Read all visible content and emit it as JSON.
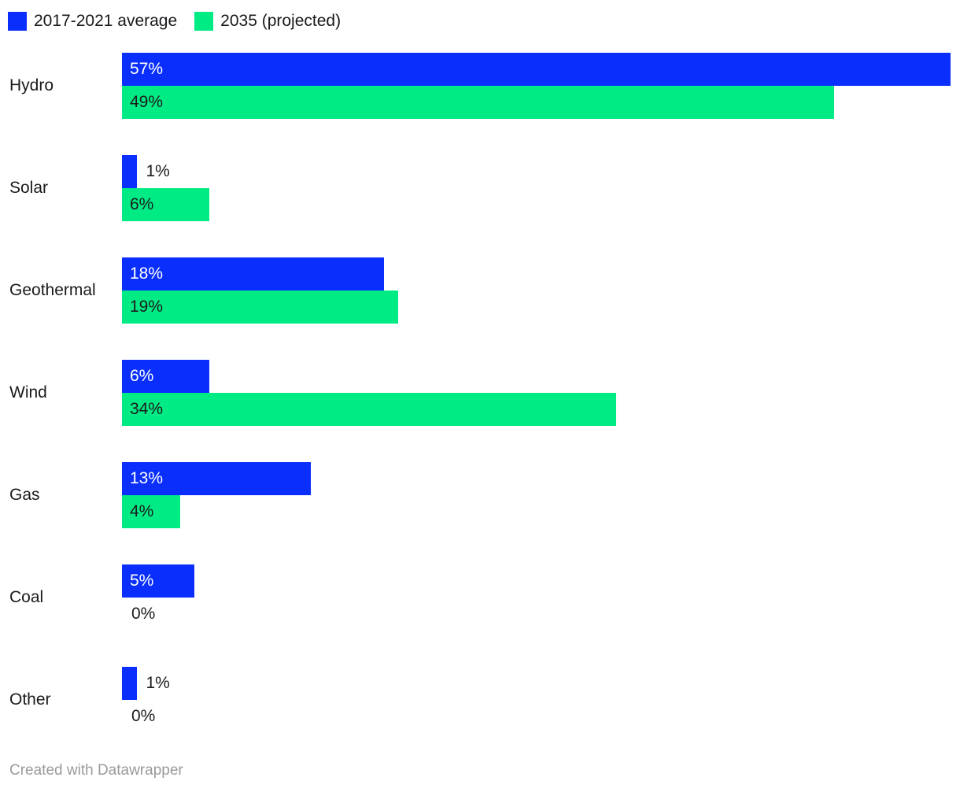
{
  "chart_data": {
    "type": "bar",
    "orientation": "horizontal",
    "categories": [
      "Hydro",
      "Solar",
      "Geothermal",
      "Wind",
      "Gas",
      "Coal",
      "Other"
    ],
    "series": [
      {
        "name": "2017-2021 average",
        "color": "#0A2FFC",
        "label_color_inside": "#ffffff",
        "values": [
          57,
          1,
          18,
          6,
          13,
          5,
          1
        ]
      },
      {
        "name": "2035 (projected)",
        "color": "#00EB84",
        "label_color_inside": "#1c1c1c",
        "values": [
          49,
          6,
          19,
          34,
          4,
          0,
          0
        ]
      }
    ],
    "value_suffix": "%",
    "data_labels": [
      [
        "57%",
        "49%"
      ],
      [
        "1%",
        "6%"
      ],
      [
        "18%",
        "19%"
      ],
      [
        "6%",
        "34%"
      ],
      [
        "13%",
        "4%"
      ],
      [
        "5%",
        "0%"
      ],
      [
        "1%",
        "0%"
      ]
    ],
    "xlim": [
      0,
      57
    ],
    "grid": false,
    "legend_position": "top",
    "title": "",
    "xlabel": "",
    "ylabel": ""
  },
  "colors": {
    "background": "#ffffff",
    "outside_label": "#1c1c1c",
    "category_label": "#1a1a1a",
    "legend_text": "#18191c",
    "footer_text": "#9a9a9a"
  },
  "footer": {
    "text": "Created with Datawrapper"
  }
}
